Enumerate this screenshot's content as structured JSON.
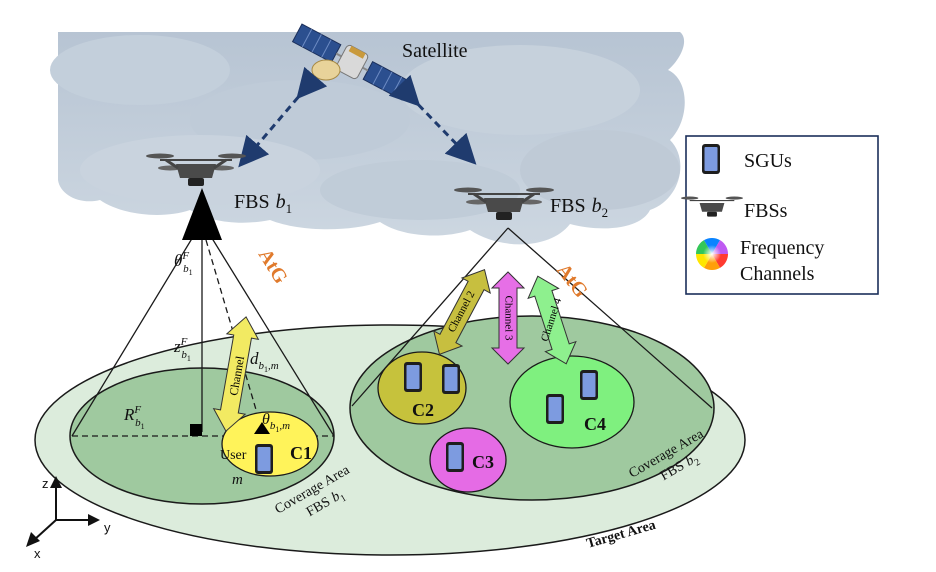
{
  "labels": {
    "satellite": "Satellite",
    "fbs1": "FBS",
    "fbs1_sym": "b",
    "fbs1_sub": "1",
    "fbs2": "FBS",
    "fbs2_sym": "b",
    "fbs2_sub": "2",
    "atg_left": "AtG",
    "atg_right": "AtG",
    "theta_main": "θ",
    "theta_sup": "F",
    "theta_sub": "b",
    "theta_sub2": "1",
    "z_main": "z",
    "z_sup": "F",
    "z_sub": "b",
    "z_sub2": "1",
    "d_main": "d",
    "d_sub": "b",
    "d_sub2": "1",
    "d_sub3": ",m",
    "r_main": "R",
    "r_sup": "F",
    "r_sub": "b",
    "r_sub2": "1",
    "theta_m_main": "θ",
    "theta_m_sub": "b",
    "theta_m_sub2": "1",
    "theta_m_sub3": ",m",
    "user": "User",
    "user_m": "m",
    "cluster_c1": "C1",
    "cluster_c2": "C2",
    "cluster_c3": "C3",
    "cluster_c4": "C4",
    "channel_left": "Channel",
    "channel_2": "Channel 2",
    "channel_3": "Channel 3",
    "channel_4": "Channel 4",
    "coverage1_line1": "Coverage Area",
    "coverage1_line2": "FBS",
    "coverage1_sym": "b",
    "coverage1_sub": "1",
    "coverage2_line1": "Coverage Area",
    "coverage2_line2": "FBS",
    "coverage2_sym": "b",
    "coverage2_sub": "2",
    "target_area": "Target Area",
    "axis_z": "z",
    "axis_y": "y",
    "axis_x": "x"
  },
  "legend": {
    "sgus": "SGUs",
    "fbss": "FBSs",
    "freq_line1": "Frequency",
    "freq_line2": "Channels"
  },
  "colors": {
    "target_area": "#dcecdc",
    "coverage": "#9fc99f",
    "c1": "#fff35a",
    "c2": "#c6c23c",
    "c3": "#e56be5",
    "c4": "#7ff07f",
    "atg": "#e07a2c",
    "channel_yellow": "#f2ea62",
    "channel_olive": "#c7bf3f",
    "channel_magenta": "#e66fe6",
    "channel_green": "#8ef08e"
  }
}
